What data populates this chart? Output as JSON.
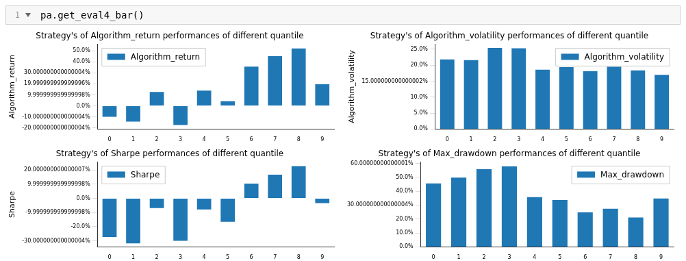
{
  "chart_data": [
    {
      "type": "bar",
      "title": "Strategy's of Algorithm_return performances of different quantile",
      "ylabel": "Algorithm_return",
      "annotations": [
        "1",
        "pa.get_eval4_bar()"
      ],
      "categories": [
        "0",
        "1",
        "2",
        "3",
        "4",
        "5",
        "6",
        "7",
        "8",
        "9"
      ],
      "series": [
        {
          "name": "Algorithm_return",
          "color": "#1f77b4",
          "values": [
            -9.9,
            -14.3,
            12.7,
            -17.3,
            13.9,
            4.2,
            35.6,
            45.0,
            52.1,
            19.6
          ]
        }
      ],
      "ylim": [
        -21,
        56
      ],
      "yticks": [
        {
          "value": -20,
          "label": "-20.000000000000004%"
        },
        {
          "value": -10,
          "label": "-10.000000000000004%"
        },
        {
          "value": 0,
          "label": "0.0%"
        },
        {
          "value": 10,
          "label": "9.999999999999998%"
        },
        {
          "value": 20,
          "label": "19.999999999999996%"
        },
        {
          "value": 30,
          "label": "30.000000000000004%"
        },
        {
          "value": 40,
          "label": "40.0%"
        },
        {
          "value": 50,
          "label": "50.0%"
        }
      ],
      "legend": "top left",
      "grid": false
    },
    {
      "type": "bar",
      "title": "Strategy's of Algorithm_volatility performances of different quantile",
      "ylabel": "Algorithm_volatility",
      "categories": [
        "0",
        "1",
        "2",
        "3",
        "4",
        "5",
        "6",
        "7",
        "8",
        "9"
      ],
      "series": [
        {
          "name": "Algorithm_volatility",
          "color": "#1f77b4",
          "values": [
            21.8,
            21.6,
            25.4,
            25.3,
            18.6,
            19.4,
            18.1,
            19.5,
            18.4,
            17.0
          ]
        }
      ],
      "ylim": [
        0,
        26.6
      ],
      "yticks": [
        {
          "value": 0,
          "label": "0.0%"
        },
        {
          "value": 5,
          "label": "5.0%"
        },
        {
          "value": 10,
          "label": "10.0%"
        },
        {
          "value": 15,
          "label": "15.000000000000002%"
        },
        {
          "value": 20,
          "label": "20.0%"
        },
        {
          "value": 25,
          "label": "25.0%"
        }
      ],
      "legend": "top right",
      "grid": false
    },
    {
      "type": "bar",
      "title": "Strategy's of Sharpe performances of different quantile",
      "ylabel": "Sharpe",
      "categories": [
        "0",
        "1",
        "2",
        "3",
        "4",
        "5",
        "6",
        "7",
        "8",
        "9"
      ],
      "series": [
        {
          "name": "Sharpe",
          "color": "#1f77b4",
          "values": [
            -27.3,
            -31.8,
            -6.9,
            -30.0,
            -7.9,
            -16.6,
            10.4,
            16.7,
            22.7,
            -3.4
          ]
        }
      ],
      "ylim": [
        -34.3,
        25.7
      ],
      "yticks": [
        {
          "value": -30,
          "label": "-30.000000000000004%"
        },
        {
          "value": -20,
          "label": "-20.0%"
        },
        {
          "value": -10,
          "label": "-9.999999999999998%"
        },
        {
          "value": 0,
          "label": "0.0%"
        },
        {
          "value": 10,
          "label": "9.999999999999998%"
        },
        {
          "value": 20,
          "label": "20.000000000000007%"
        }
      ],
      "legend": "top left",
      "grid": false
    },
    {
      "type": "bar",
      "title": "Strategy's of Max_drawdown performances of different quantile",
      "categories": [
        "0",
        "1",
        "2",
        "3",
        "4",
        "5",
        "6",
        "7",
        "8",
        "9"
      ],
      "series": [
        {
          "name": "Max_drawdown",
          "color": "#1f77b4",
          "values": [
            45.6,
            49.8,
            55.8,
            57.9,
            35.8,
            33.7,
            24.8,
            27.4,
            21.1,
            34.8
          ]
        }
      ],
      "ylim": [
        0,
        61
      ],
      "yticks": [
        {
          "value": 0,
          "label": "0.0%"
        },
        {
          "value": 10,
          "label": "10.0%"
        },
        {
          "value": 20,
          "label": "20.0%"
        },
        {
          "value": 30,
          "label": "30.000000000000004%"
        },
        {
          "value": 40,
          "label": "40.0%"
        },
        {
          "value": 50,
          "label": "50.0%"
        },
        {
          "value": 60,
          "label": "60.00000000000001%"
        }
      ],
      "legend": "top right",
      "grid": false
    }
  ]
}
